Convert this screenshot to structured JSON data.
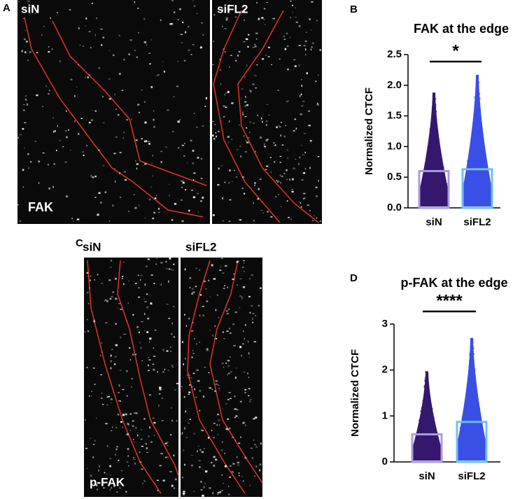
{
  "figure": {
    "panel_labels": [
      "A",
      "B",
      "C",
      "D"
    ],
    "panel_a": {
      "labels": [
        "siN",
        "siFL2"
      ],
      "stain": "FAK"
    },
    "panel_c": {
      "labels": [
        "siN",
        "siFL2"
      ],
      "stain": "p-FAK"
    }
  },
  "chart_data": [
    {
      "type": "bar",
      "title": "FAK at the edge",
      "significance": "*",
      "ylabel": "Normalized CTCF",
      "categories": [
        "siN",
        "siFL2"
      ],
      "values": [
        0.6,
        0.63
      ],
      "max": [
        1.88,
        2.17
      ],
      "bar_colors": [
        "#a99be0",
        "#6ec1f2"
      ],
      "point_colors": [
        "#35186e",
        "#3a4fe6"
      ],
      "ylim": [
        0,
        2.5
      ],
      "yticks": [
        {
          "value": 0,
          "label": "0.0"
        },
        0.5,
        {
          "value": 1,
          "label": "1.0"
        },
        1.5,
        {
          "value": 2,
          "label": "2.0"
        },
        2.5
      ]
    },
    {
      "type": "bar",
      "title": "p-FAK at the edge",
      "significance": "****",
      "ylabel": "Normalized CTCF",
      "categories": [
        "siN",
        "siFL2"
      ],
      "values": [
        0.6,
        0.87
      ],
      "max": [
        1.97,
        2.7
      ],
      "bar_colors": [
        "#a99be0",
        "#6ec1f2"
      ],
      "point_colors": [
        "#35186e",
        "#3a4fe6"
      ],
      "ylim": [
        0,
        3
      ],
      "yticks": [
        0,
        1,
        2,
        3
      ]
    }
  ]
}
